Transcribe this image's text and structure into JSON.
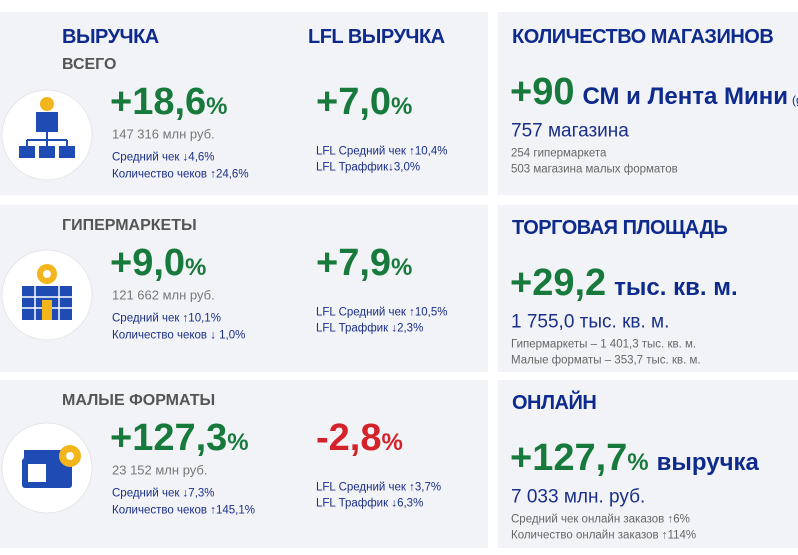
{
  "left": {
    "header": {
      "revenue": "ВЫРУЧКА",
      "lfl": "LFL ВЫРУЧКА"
    },
    "sections": [
      {
        "label": "ВСЕГО",
        "revenue": {
          "value": "+18,6",
          "unit": "%"
        },
        "amount": "147 316 млн руб.",
        "avg_check": "Средний чек ↓4,6%",
        "checks": "Количество чеков ↑24,6%",
        "lfl": {
          "value": "+7,0",
          "unit": "%",
          "color": "#177a3c"
        },
        "lfl_avg_check": "LFL Средний чек ↑10,4%",
        "lfl_traffic": "LFL Траффик↓3,0%"
      },
      {
        "label": "ГИПЕРМАРКЕТЫ",
        "revenue": {
          "value": "+9,0",
          "unit": "%"
        },
        "amount": "121 662 млн руб.",
        "avg_check": "Средний чек ↑10,1%",
        "checks": "Количество чеков ↓ 1,0%",
        "lfl": {
          "value": "+7,9",
          "unit": "%",
          "color": "#177a3c"
        },
        "lfl_avg_check": "LFL Средний чек ↑10,5%",
        "lfl_traffic": "LFL Траффик ↓2,3%"
      },
      {
        "label": "МАЛЫЕ ФОРМАТЫ",
        "revenue": {
          "value": "+127,3",
          "unit": "%"
        },
        "amount": "23 152 млн руб.",
        "avg_check": "Средний чек ↓7,3%",
        "checks": "Количество чеков ↑145,1%",
        "lfl": {
          "value": "-2,8",
          "unit": "%",
          "color": "#d3222a"
        },
        "lfl_avg_check": "LFL Средний чек ↑3,7%",
        "lfl_traffic": "LFL Траффик ↓6,3%"
      }
    ]
  },
  "right": [
    {
      "title": "КОЛИЧЕСТВО МАГАЗИНОВ",
      "value": "+90",
      "note": "СМ и Лента Мини",
      "note_small": "(gross)",
      "total": "757 магазина",
      "details": [
        "254 гипермаркета",
        "503 магазина малых форматов"
      ]
    },
    {
      "title": "ТОРГОВАЯ ПЛОЩАДЬ",
      "value": "+29,2",
      "note": "тыс. кв. м.",
      "total": "1 755,0 тыс. кв. м.",
      "details": [
        "Гипермаркеты – 1 401,3 тыс. кв. м.",
        "Малые форматы – 353,7 тыс. кв. м."
      ]
    },
    {
      "title": "ОНЛАЙН",
      "value": "+127,7",
      "unit": "%",
      "note": "выручка",
      "total": "7 033 млн. руб.",
      "details": [
        "Средний чек онлайн заказов ↑6%",
        "Количество онлайн заказов ↑114%"
      ]
    }
  ]
}
